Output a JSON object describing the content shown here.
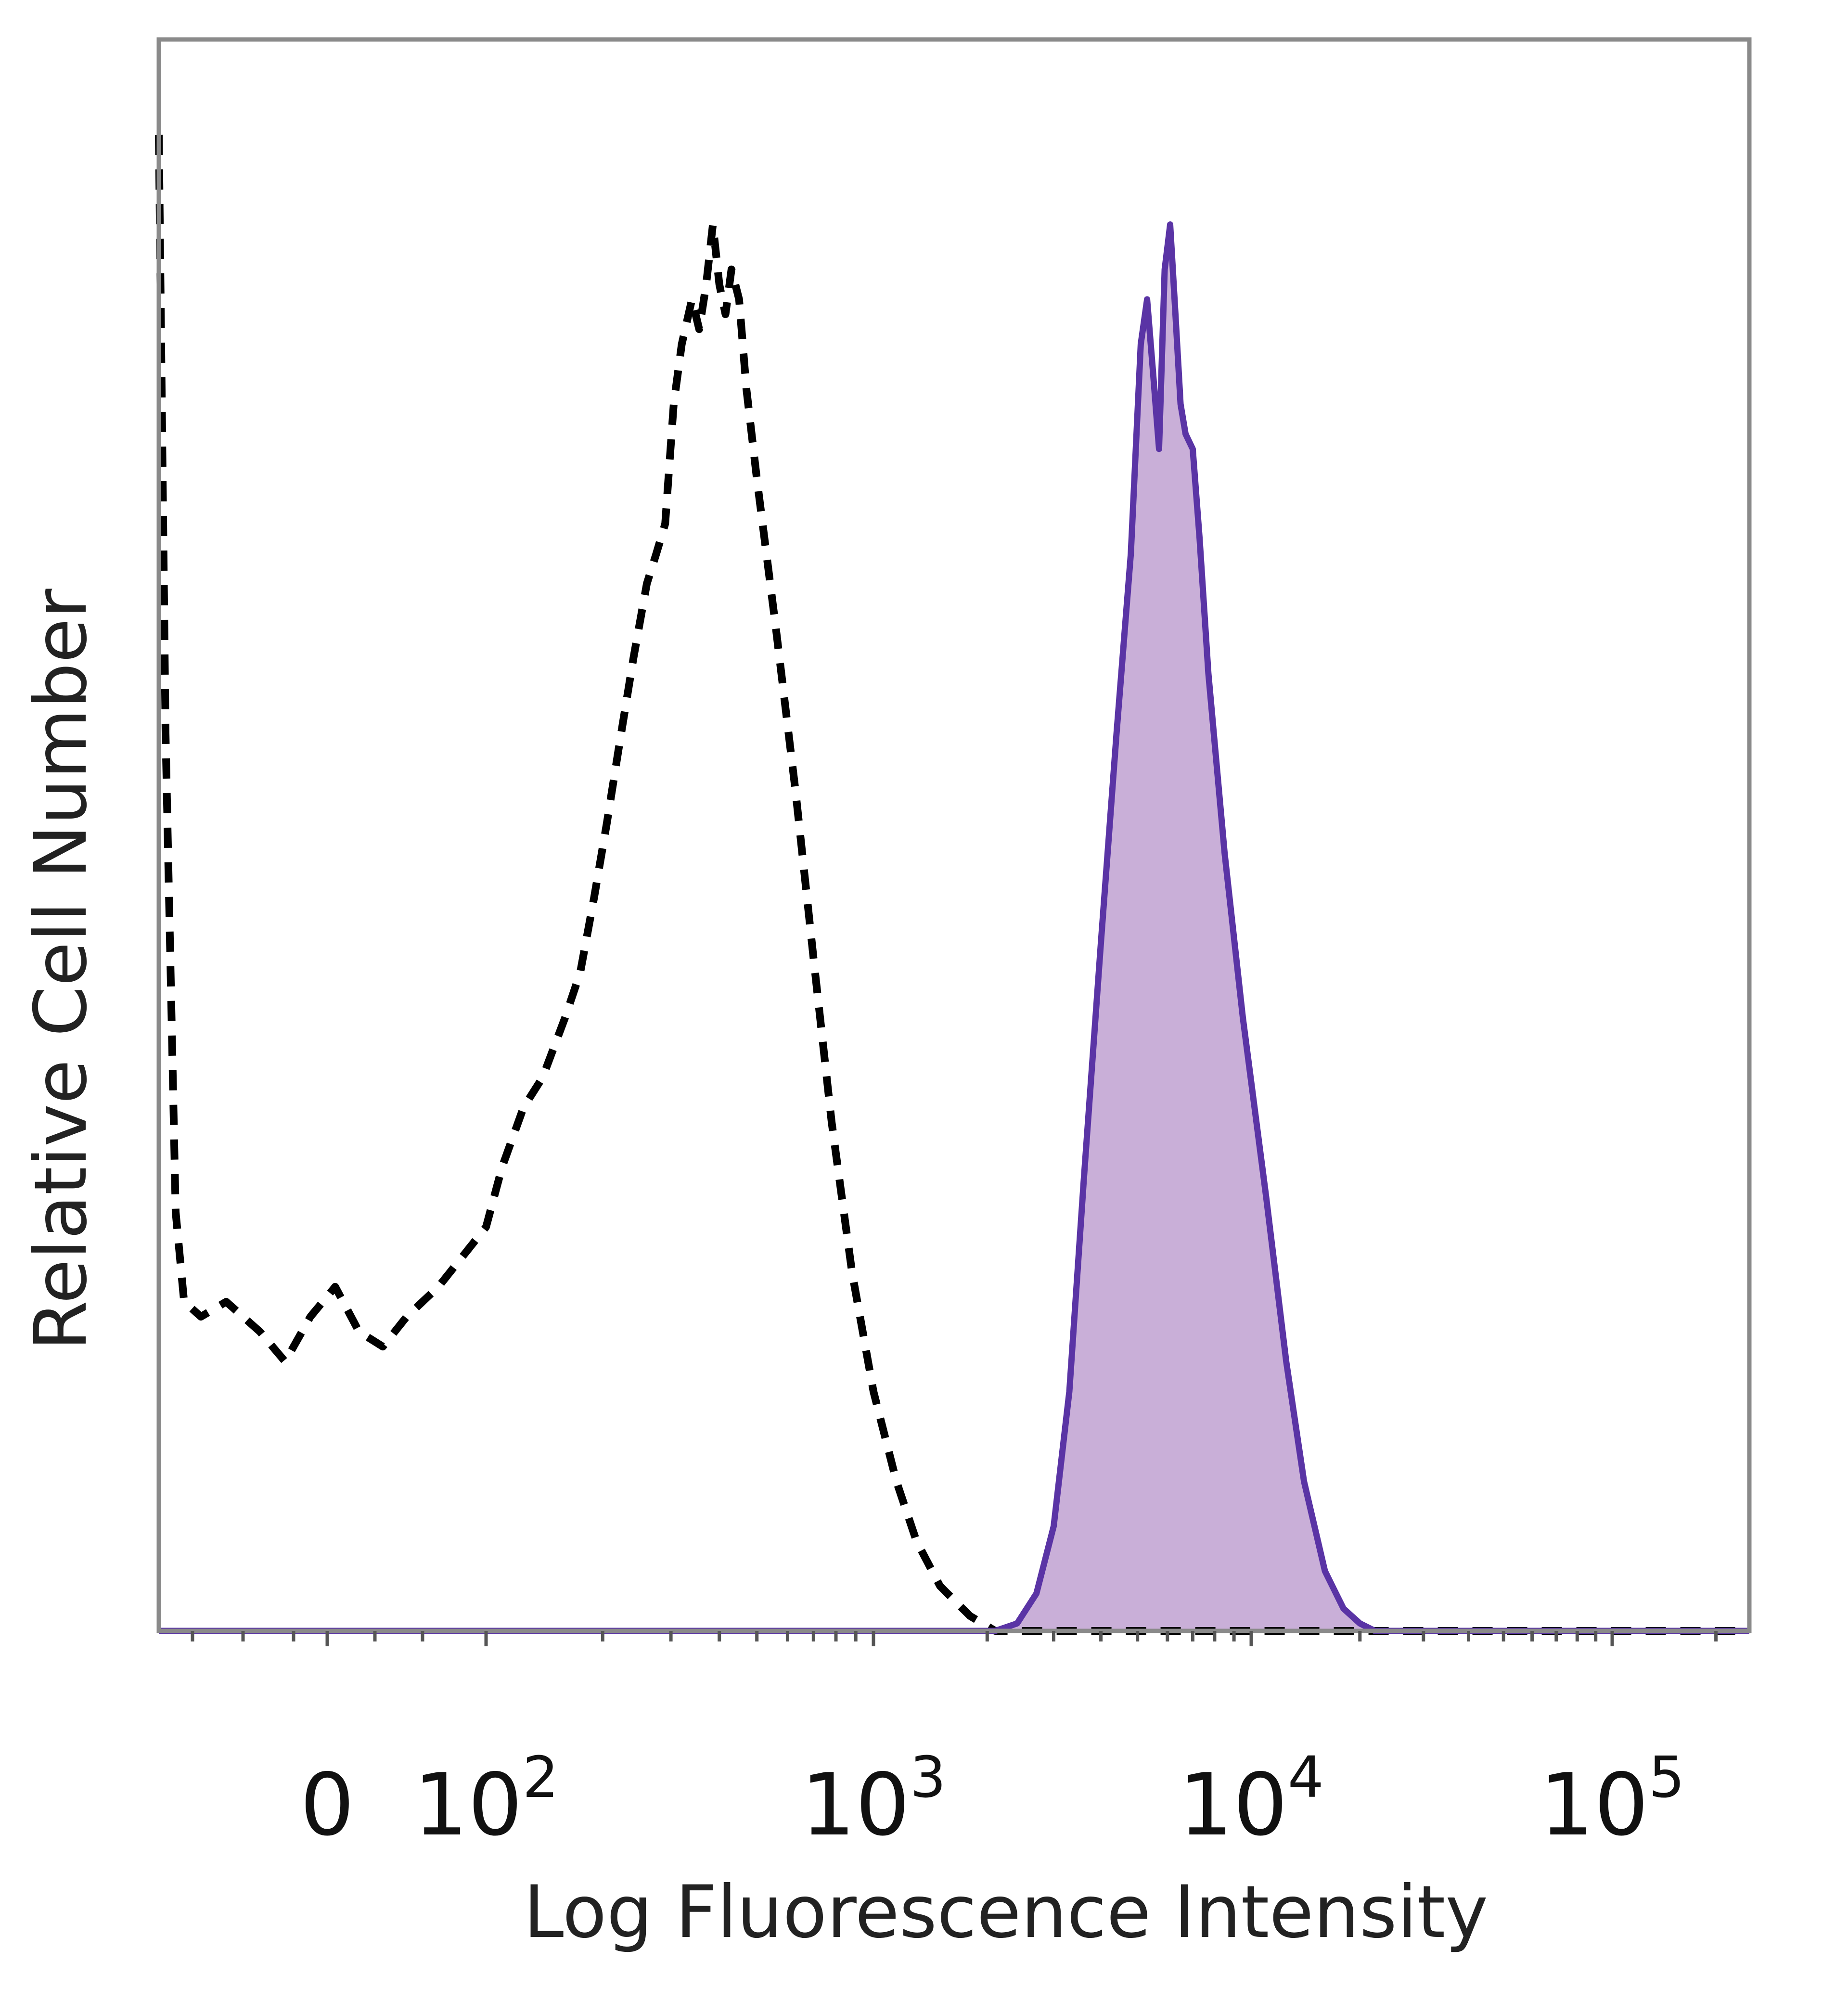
{
  "chart_data": {
    "type": "line",
    "title": "",
    "xlabel": "Log Fluorescence Intensity",
    "ylabel": "Relative Cell Number",
    "x_scale": "log (biexponential)",
    "xlim": [
      -100,
      250000
    ],
    "ylim": [
      0,
      100
    ],
    "grid": false,
    "legend": "none",
    "x_ticks": [
      {
        "value": 0,
        "base": "0",
        "exp": ""
      },
      {
        "value": 100,
        "base": "10",
        "exp": "2"
      },
      {
        "value": 1000,
        "base": "10",
        "exp": "3"
      },
      {
        "value": 10000,
        "base": "10",
        "exp": "4"
      },
      {
        "value": 100000,
        "base": "10",
        "exp": "5"
      }
    ],
    "series": [
      {
        "style": "dashed",
        "color": "#000000",
        "fill": "none",
        "points": [
          [
            -100,
            100
          ],
          [
            -96,
            60
          ],
          [
            -90,
            28
          ],
          [
            -85,
            22
          ],
          [
            -75,
            21
          ],
          [
            -60,
            22
          ],
          [
            -40,
            20
          ],
          [
            -25,
            18
          ],
          [
            -10,
            21
          ],
          [
            5,
            23
          ],
          [
            20,
            20
          ],
          [
            35,
            19
          ],
          [
            50,
            21
          ],
          [
            60,
            22
          ],
          [
            70,
            23
          ],
          [
            85,
            25
          ],
          [
            100,
            27
          ],
          [
            110,
            31
          ],
          [
            125,
            35
          ],
          [
            140,
            37
          ],
          [
            160,
            41
          ],
          [
            175,
            44
          ],
          [
            190,
            49
          ],
          [
            205,
            54
          ],
          [
            220,
            59
          ],
          [
            240,
            65
          ],
          [
            260,
            70
          ],
          [
            275,
            72
          ],
          [
            290,
            74
          ],
          [
            305,
            82
          ],
          [
            320,
            86
          ],
          [
            340,
            89
          ],
          [
            355,
            87
          ],
          [
            370,
            90
          ],
          [
            385,
            94
          ],
          [
            400,
            90
          ],
          [
            415,
            88
          ],
          [
            430,
            91
          ],
          [
            450,
            89
          ],
          [
            470,
            83
          ],
          [
            500,
            77
          ],
          [
            560,
            67
          ],
          [
            630,
            56
          ],
          [
            700,
            45
          ],
          [
            780,
            34
          ],
          [
            880,
            24
          ],
          [
            1000,
            16
          ],
          [
            1150,
            10
          ],
          [
            1300,
            6
          ],
          [
            1500,
            3
          ],
          [
            1800,
            1
          ],
          [
            2100,
            0
          ],
          [
            3000,
            0
          ],
          [
            10000,
            0
          ],
          [
            100000,
            0
          ],
          [
            250000,
            0
          ]
        ]
      },
      {
        "style": "solid",
        "color": "#5a34a5",
        "fill": "#c9afd8",
        "points": [
          [
            -100,
            0
          ],
          [
            2100,
            0
          ],
          [
            2400,
            0.5
          ],
          [
            2700,
            2.5
          ],
          [
            3000,
            7
          ],
          [
            3300,
            16
          ],
          [
            3600,
            30
          ],
          [
            4000,
            46
          ],
          [
            4400,
            60
          ],
          [
            4800,
            72
          ],
          [
            5100,
            86
          ],
          [
            5300,
            89
          ],
          [
            5500,
            84
          ],
          [
            5700,
            79
          ],
          [
            5900,
            91
          ],
          [
            6100,
            94
          ],
          [
            6300,
            88
          ],
          [
            6500,
            82
          ],
          [
            6700,
            80
          ],
          [
            7000,
            79
          ],
          [
            7300,
            73
          ],
          [
            7700,
            64
          ],
          [
            8500,
            52
          ],
          [
            9500,
            41
          ],
          [
            11000,
            29
          ],
          [
            12500,
            18
          ],
          [
            14000,
            10
          ],
          [
            16000,
            4
          ],
          [
            18000,
            1.5
          ],
          [
            20000,
            0.5
          ],
          [
            22000,
            0
          ],
          [
            100000,
            0
          ],
          [
            250000,
            0
          ]
        ]
      }
    ]
  }
}
